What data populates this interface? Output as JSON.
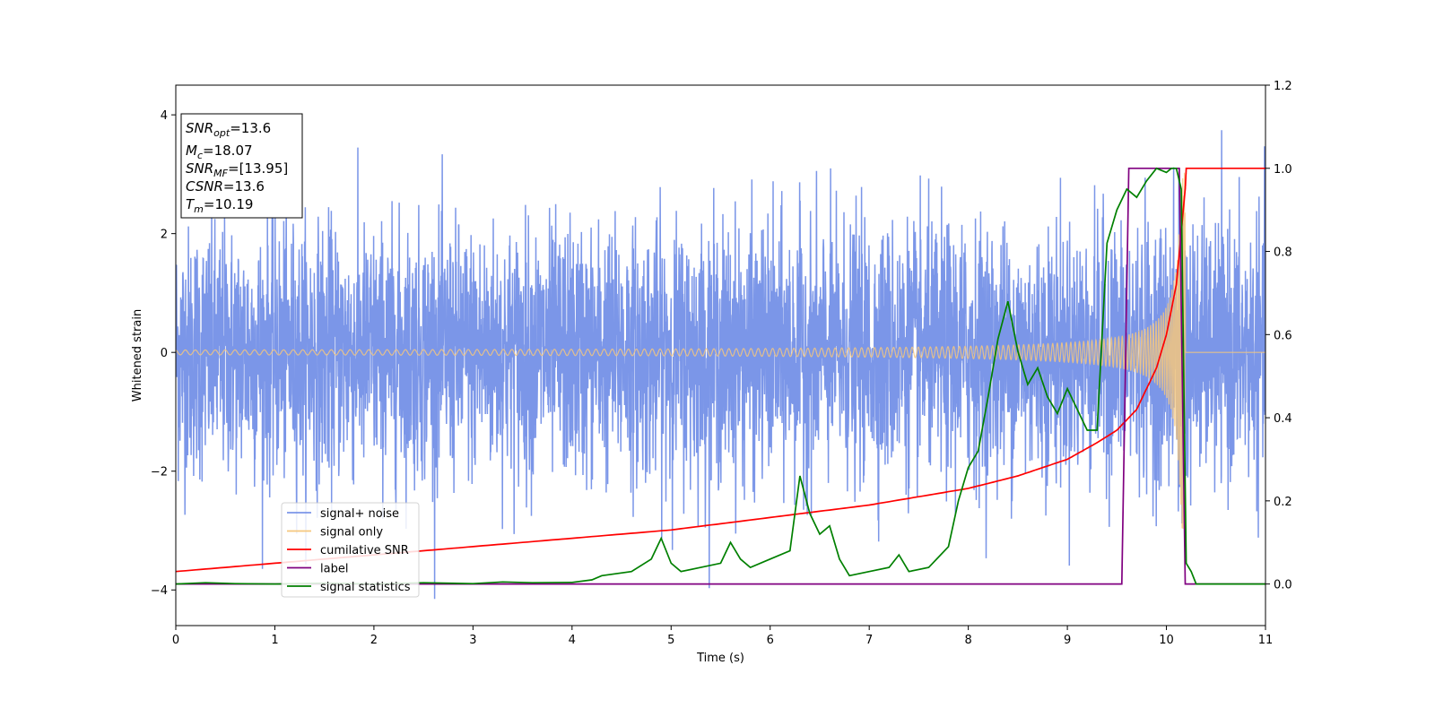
{
  "chart_data": {
    "type": "line",
    "title": "",
    "xlabel": "Time (s)",
    "ylabel": "Whitened strain",
    "xlim": [
      0,
      11
    ],
    "ylim": [
      -4.6,
      4.5
    ],
    "y2lim": [
      -0.1,
      1.2
    ],
    "x_ticks": [
      "0",
      "1",
      "2",
      "3",
      "4",
      "5",
      "6",
      "7",
      "8",
      "9",
      "10",
      "11"
    ],
    "y_ticks": [
      "−4",
      "−2",
      "0",
      "2",
      "4"
    ],
    "y2_ticks": [
      "0.0",
      "0.2",
      "0.4",
      "0.6",
      "0.8",
      "1.0",
      "1.2"
    ],
    "grid": false,
    "legend_position": "lower-left",
    "info_box": {
      "snr_opt": {
        "base": "SNR",
        "sub": "opt",
        "value": "=13.6"
      },
      "mc": {
        "base": "M",
        "sub": "c",
        "value": "=18.07"
      },
      "snr_mf": {
        "base": "SNR",
        "sub": "MF",
        "value": "=[13.95]"
      },
      "csnr": {
        "base": "CSNR",
        "value": "=13.6"
      },
      "tm": {
        "base": "T",
        "sub": "m",
        "value": "=10.19"
      }
    },
    "series": [
      {
        "name": "signal+ noise",
        "color": "#7b96e8",
        "axis": "left",
        "description_values": {
          "noise_std": 1.0,
          "approx_range": [
            -4.15,
            4.05
          ]
        }
      },
      {
        "name": "signal only",
        "color": "#f5c77e",
        "axis": "left",
        "chirp": {
          "t_start": 0,
          "t_merger": 10.19,
          "amp_start": 0.02,
          "amp_merger": 3.05
        }
      },
      {
        "name": "cumilative SNR",
        "color": "#ff0000",
        "axis": "right",
        "x": [
          0,
          1,
          2,
          3,
          4,
          5,
          6,
          7,
          8,
          8.5,
          9,
          9.3,
          9.5,
          9.7,
          9.9,
          10.0,
          10.1,
          10.19,
          10.2,
          11
        ],
        "values": [
          0.03,
          0.05,
          0.07,
          0.09,
          0.11,
          0.13,
          0.16,
          0.19,
          0.23,
          0.26,
          0.3,
          0.34,
          0.37,
          0.42,
          0.52,
          0.6,
          0.72,
          0.95,
          1.0,
          1.0
        ]
      },
      {
        "name": "label",
        "color": "#800080",
        "axis": "right",
        "x": [
          0,
          9.55,
          9.62,
          10.13,
          10.19,
          11
        ],
        "values": [
          0,
          0,
          1,
          1,
          0,
          0
        ]
      },
      {
        "name": "signal statistics",
        "color": "#008000",
        "axis": "right",
        "x": [
          0,
          0.3,
          0.6,
          1.0,
          1.5,
          2.0,
          2.5,
          3.0,
          3.3,
          3.6,
          4.0,
          4.2,
          4.3,
          4.6,
          4.8,
          4.9,
          5.0,
          5.1,
          5.3,
          5.5,
          5.6,
          5.7,
          5.8,
          6.0,
          6.2,
          6.3,
          6.4,
          6.5,
          6.6,
          6.7,
          6.8,
          7.0,
          7.2,
          7.3,
          7.4,
          7.6,
          7.8,
          7.9,
          8.0,
          8.1,
          8.2,
          8.3,
          8.4,
          8.5,
          8.6,
          8.7,
          8.8,
          8.9,
          9.0,
          9.1,
          9.2,
          9.3,
          9.4,
          9.5,
          9.6,
          9.7,
          9.8,
          9.9,
          10.0,
          10.05,
          10.1,
          10.15,
          10.2,
          10.25,
          10.3,
          10.4,
          11.0
        ],
        "values": [
          0.0,
          0.003,
          0.001,
          0.0,
          0.002,
          0.0,
          0.003,
          0.001,
          0.005,
          0.003,
          0.004,
          0.01,
          0.02,
          0.03,
          0.06,
          0.11,
          0.05,
          0.03,
          0.04,
          0.05,
          0.1,
          0.06,
          0.04,
          0.06,
          0.08,
          0.26,
          0.17,
          0.12,
          0.14,
          0.06,
          0.02,
          0.03,
          0.04,
          0.07,
          0.03,
          0.04,
          0.09,
          0.2,
          0.28,
          0.32,
          0.45,
          0.59,
          0.68,
          0.56,
          0.48,
          0.52,
          0.45,
          0.41,
          0.47,
          0.42,
          0.37,
          0.37,
          0.82,
          0.9,
          0.95,
          0.93,
          0.97,
          1.0,
          0.99,
          1.0,
          1.0,
          0.95,
          0.05,
          0.03,
          0.0,
          0.0,
          0.0
        ]
      }
    ]
  }
}
